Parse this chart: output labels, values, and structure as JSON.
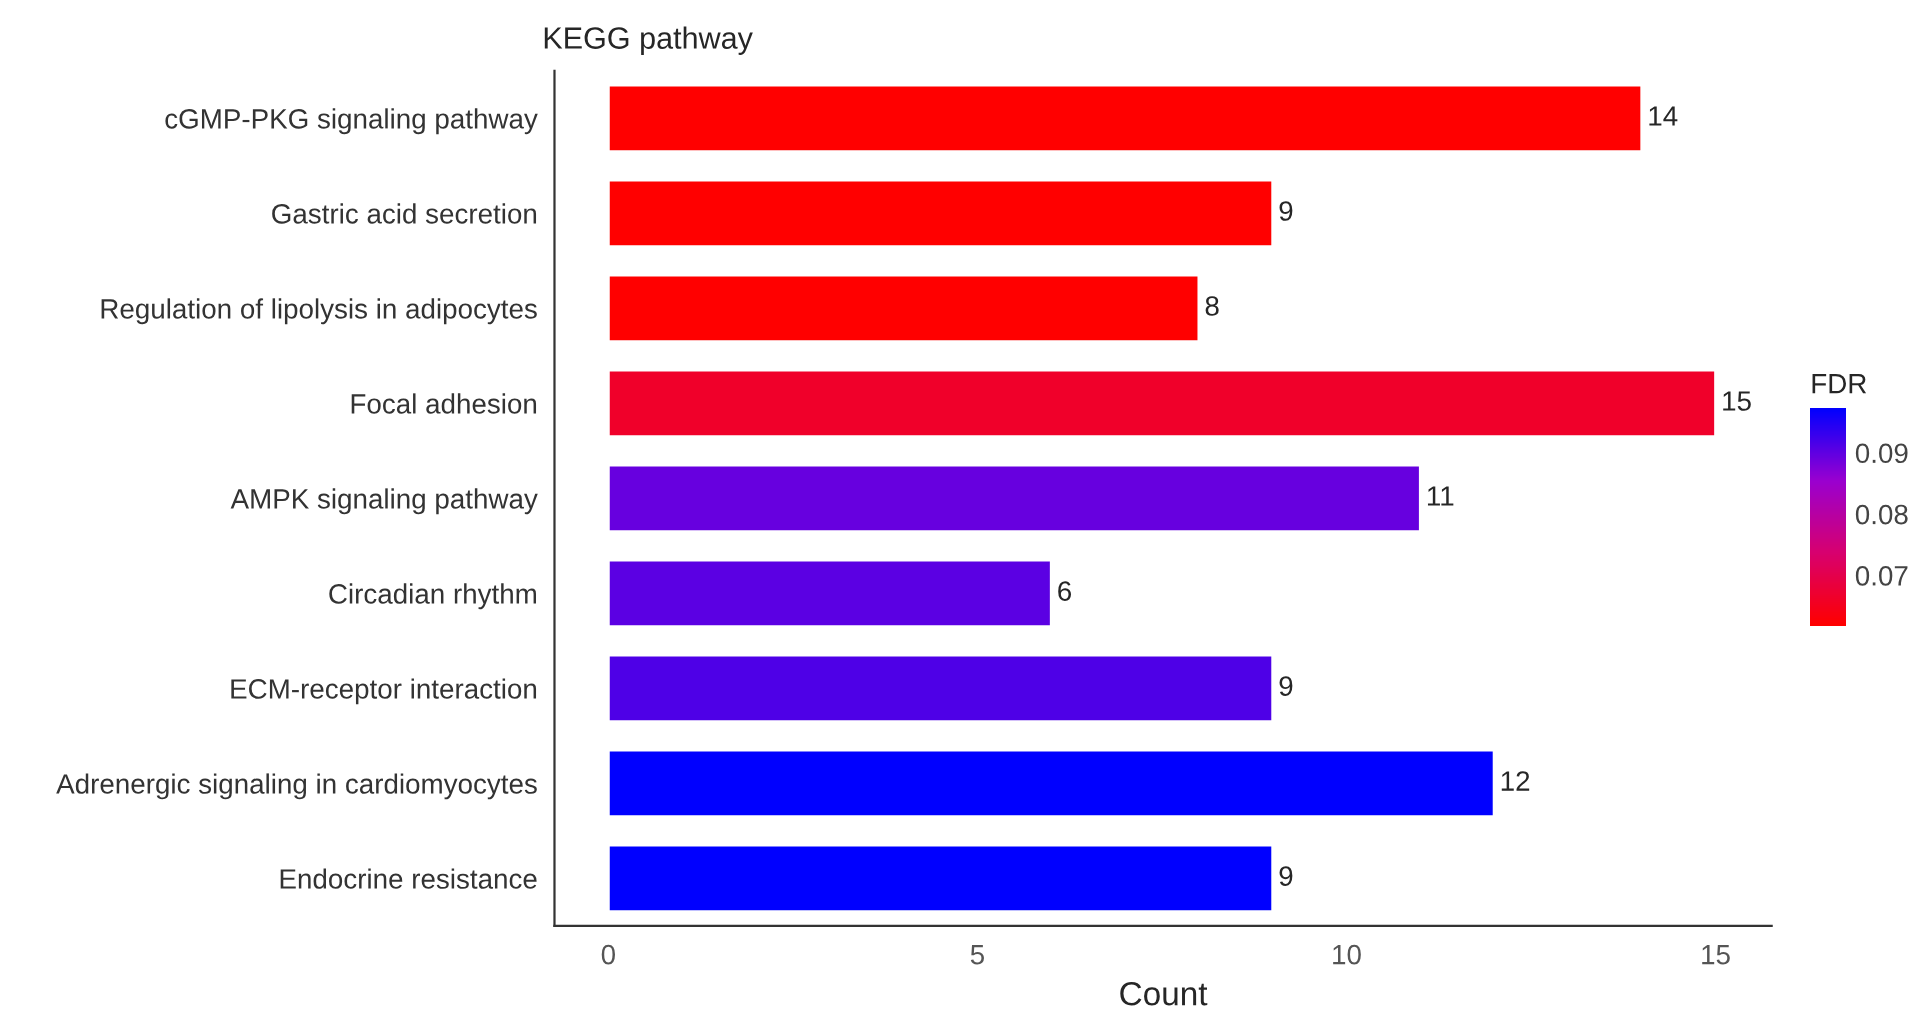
{
  "chart_data": {
    "type": "bar",
    "orientation": "horizontal",
    "ylabel": "KEGG pathway",
    "xlabel": "Count",
    "clabel": "FDR",
    "categories": [
      "cGMP-PKG signaling pathway",
      "Gastric acid secretion",
      "Regulation of lipolysis in adipocytes",
      "Focal adhesion",
      "AMPK signaling pathway",
      "Circadian rhythm",
      "ECM-receptor interaction",
      "Adrenergic signaling in cardiomyocytes",
      "Endocrine resistance"
    ],
    "values": [
      14,
      9,
      8,
      15,
      11,
      6,
      9,
      12,
      9
    ],
    "cvalues": [
      0.0615,
      0.0615,
      0.0615,
      0.066,
      0.089,
      0.09,
      0.091,
      0.097,
      0.097
    ],
    "clim": [
      0.0615,
      0.097
    ],
    "cticks": [
      0.07,
      0.08,
      0.09
    ],
    "xlim": [
      -0.73,
      15.76
    ],
    "xticks": [
      0,
      5,
      10,
      15
    ],
    "data_labels": true,
    "grid": false,
    "legend": false
  }
}
